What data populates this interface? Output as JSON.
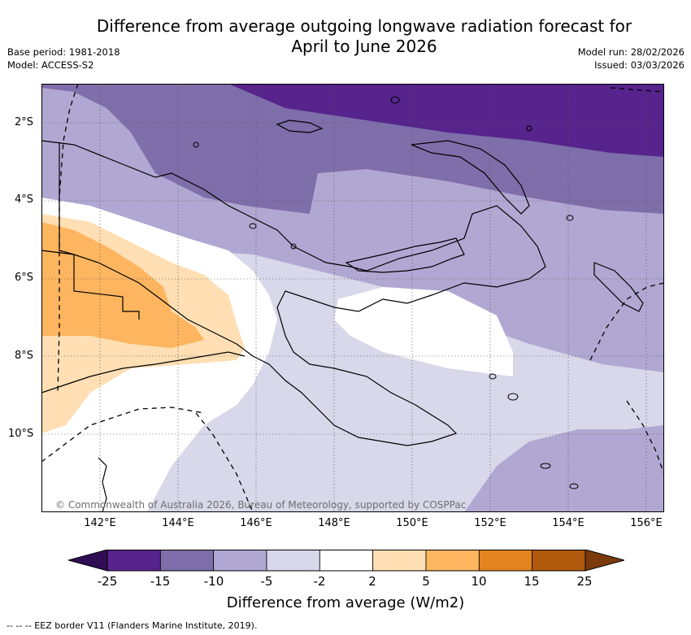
{
  "title": {
    "line1": "Difference from average outgoing longwave radiation forecast for",
    "line2": "April to June 2026"
  },
  "meta": {
    "base_period": "Base period: 1981-2018",
    "model": "Model: ACCESS-S2",
    "model_run": "Model run: 28/02/2026",
    "issued": "Issued: 03/03/2026"
  },
  "map": {
    "lat_labels": [
      "2°S",
      "4°S",
      "6°S",
      "8°S",
      "10°S"
    ],
    "lon_labels": [
      "142°E",
      "144°E",
      "146°E",
      "148°E",
      "150°E",
      "152°E",
      "154°E",
      "156°E"
    ],
    "copyright": "© Commonwealth of Australia 2026, Bureau of Meteorology, supported by COSPPac",
    "region": "Papua New Guinea"
  },
  "colorbar": {
    "labels": [
      "-25",
      "-15",
      "-10",
      "-5",
      "-2",
      "2",
      "5",
      "10",
      "15",
      "25"
    ],
    "colors": [
      "#56248c",
      "#7e6eaa",
      "#b0a8d2",
      "#d8d8ea",
      "#ffffff",
      "#ffdfb3",
      "#fdb55f",
      "#e28420",
      "#b1590c"
    ],
    "under_color": "#2e0d55",
    "over_color": "#7a3a0c",
    "title": "Difference from average (W/m2)"
  },
  "legend_note": "--  --  -- EEZ border V11 (Flanders Marine Institute, 2019)."
}
